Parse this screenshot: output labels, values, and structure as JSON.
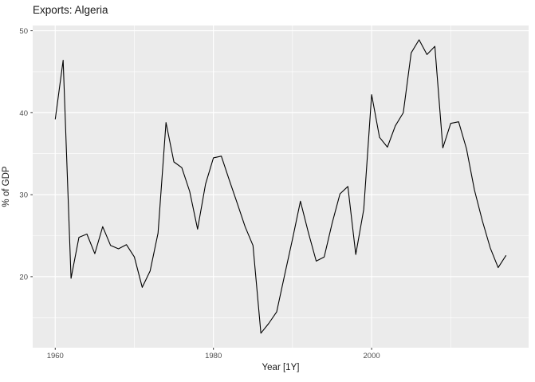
{
  "chart_data": {
    "type": "line",
    "title": "Exports: Algeria",
    "xlabel": "Year [1Y]",
    "ylabel": "% of GDP",
    "x": [
      1960,
      1961,
      1962,
      1963,
      1964,
      1965,
      1966,
      1967,
      1968,
      1969,
      1970,
      1971,
      1972,
      1973,
      1974,
      1975,
      1976,
      1977,
      1978,
      1979,
      1980,
      1981,
      1982,
      1983,
      1984,
      1985,
      1986,
      1987,
      1988,
      1989,
      1990,
      1991,
      1992,
      1993,
      1994,
      1995,
      1996,
      1997,
      1998,
      1999,
      2000,
      2001,
      2002,
      2003,
      2004,
      2005,
      2006,
      2007,
      2008,
      2009,
      2010,
      2011,
      2012,
      2013,
      2014,
      2015,
      2016,
      2017
    ],
    "values": [
      39.2,
      46.4,
      19.8,
      24.8,
      25.2,
      22.8,
      26.1,
      23.8,
      23.4,
      23.9,
      22.4,
      18.7,
      20.7,
      25.3,
      38.8,
      34.0,
      33.3,
      30.4,
      25.8,
      31.3,
      34.5,
      34.7,
      31.8,
      29.0,
      26.1,
      23.8,
      13.1,
      14.3,
      15.7,
      20.2,
      24.6,
      29.2,
      25.4,
      21.9,
      22.4,
      26.5,
      30.1,
      31.0,
      22.7,
      28.2,
      42.2,
      37.0,
      35.8,
      38.4,
      40.0,
      47.3,
      48.9,
      47.1,
      48.1,
      35.7,
      38.7,
      38.9,
      35.6,
      30.6,
      26.8,
      23.5,
      21.1,
      22.6
    ],
    "x_major_ticks": [
      1960,
      1980,
      2000
    ],
    "x_minor_ticks": [
      1970,
      1990,
      2010
    ],
    "y_major_ticks": [
      20,
      30,
      40,
      50
    ],
    "y_minor_ticks": [
      15,
      25,
      35,
      45
    ],
    "xlim": [
      1957.15,
      2019.85
    ],
    "ylim": [
      11.33,
      50.64
    ],
    "grid": "on",
    "legend": "none",
    "colors": {
      "panel_background": "#EBEBEB",
      "grid_major": "#FFFFFF",
      "grid_minor": "#FFFFFF",
      "line": "#000000",
      "tick_label": "#4D4D4D",
      "tick_mark": "#333333",
      "text": "#1A1A1A"
    }
  }
}
